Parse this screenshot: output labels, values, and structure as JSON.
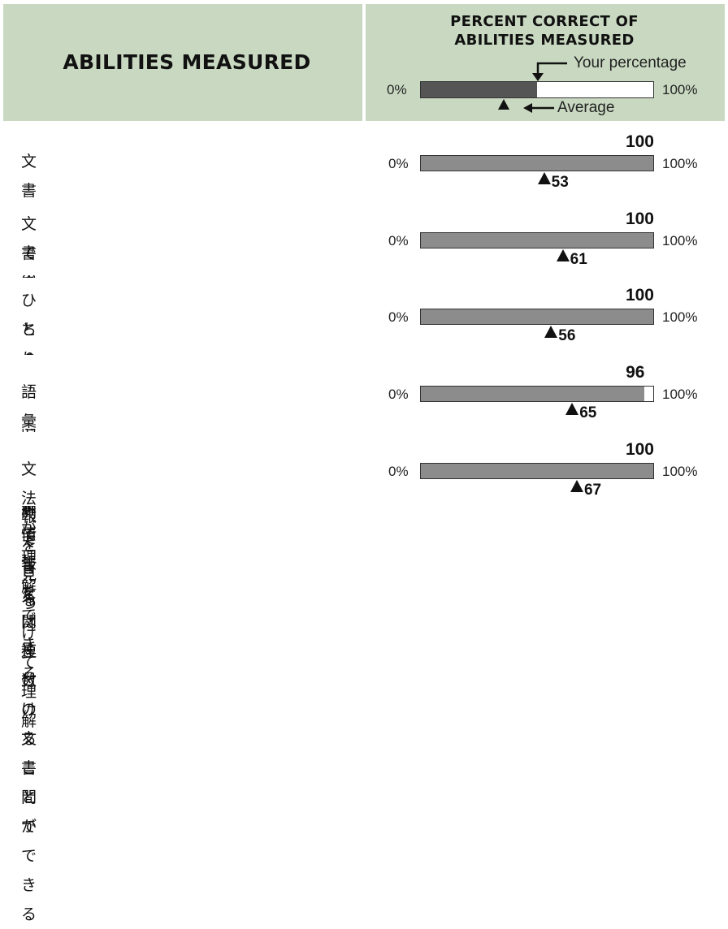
{
  "header": {
    "abilities_title": "ABILITIES MEASURED",
    "percent_title_line1": "PERCENT CORRECT OF",
    "percent_title_line2": "ABILITIES MEASURED",
    "legend": {
      "your_percentage_label": "Your percentage",
      "average_label": "Average",
      "min_label": "0%",
      "max_label": "100%",
      "sample_your_percent": 50
    }
  },
  "rows": [
    {
      "ability": [
        "文書の中の情報をもとに推測できる"
      ],
      "your_percent": 100,
      "average": 53
    },
    {
      "ability": [
        "文書の中の具体的な情報を見つけて理解",
        "できる"
      ],
      "your_percent": 100,
      "average": 61
    },
    {
      "ability": [
        "ひとつの文書の中でまたは複数の文書間で",
        "ちりばめられた情報を関連付けることができる"
      ],
      "your_percent": 100,
      "average": 56
    },
    {
      "ability": [
        "語彙が理解できる"
      ],
      "your_percent": 96,
      "average": 65
    },
    {
      "ability": [
        "文法が理解できる"
      ],
      "your_percent": 100,
      "average": 67
    }
  ],
  "colors": {
    "grid": "#8aa870",
    "header_bg": "#c9d9c1",
    "bar_fill": "#8c8c8c",
    "legend_fill": "#555555"
  },
  "chart_data": {
    "type": "bar",
    "categories": [
      "文書の中の情報をもとに推測できる",
      "文書の中の具体的な情報を見つけて理解できる",
      "ひとつの文書の中でまたは複数の文書間でちりばめられた情報を関連付けることができる",
      "語彙が理解できる",
      "文法が理解できる"
    ],
    "series": [
      {
        "name": "Your percentage",
        "values": [
          100,
          100,
          100,
          96,
          100
        ]
      },
      {
        "name": "Average",
        "values": [
          53,
          61,
          56,
          65,
          67
        ]
      }
    ],
    "ylim": [
      0,
      100
    ]
  }
}
